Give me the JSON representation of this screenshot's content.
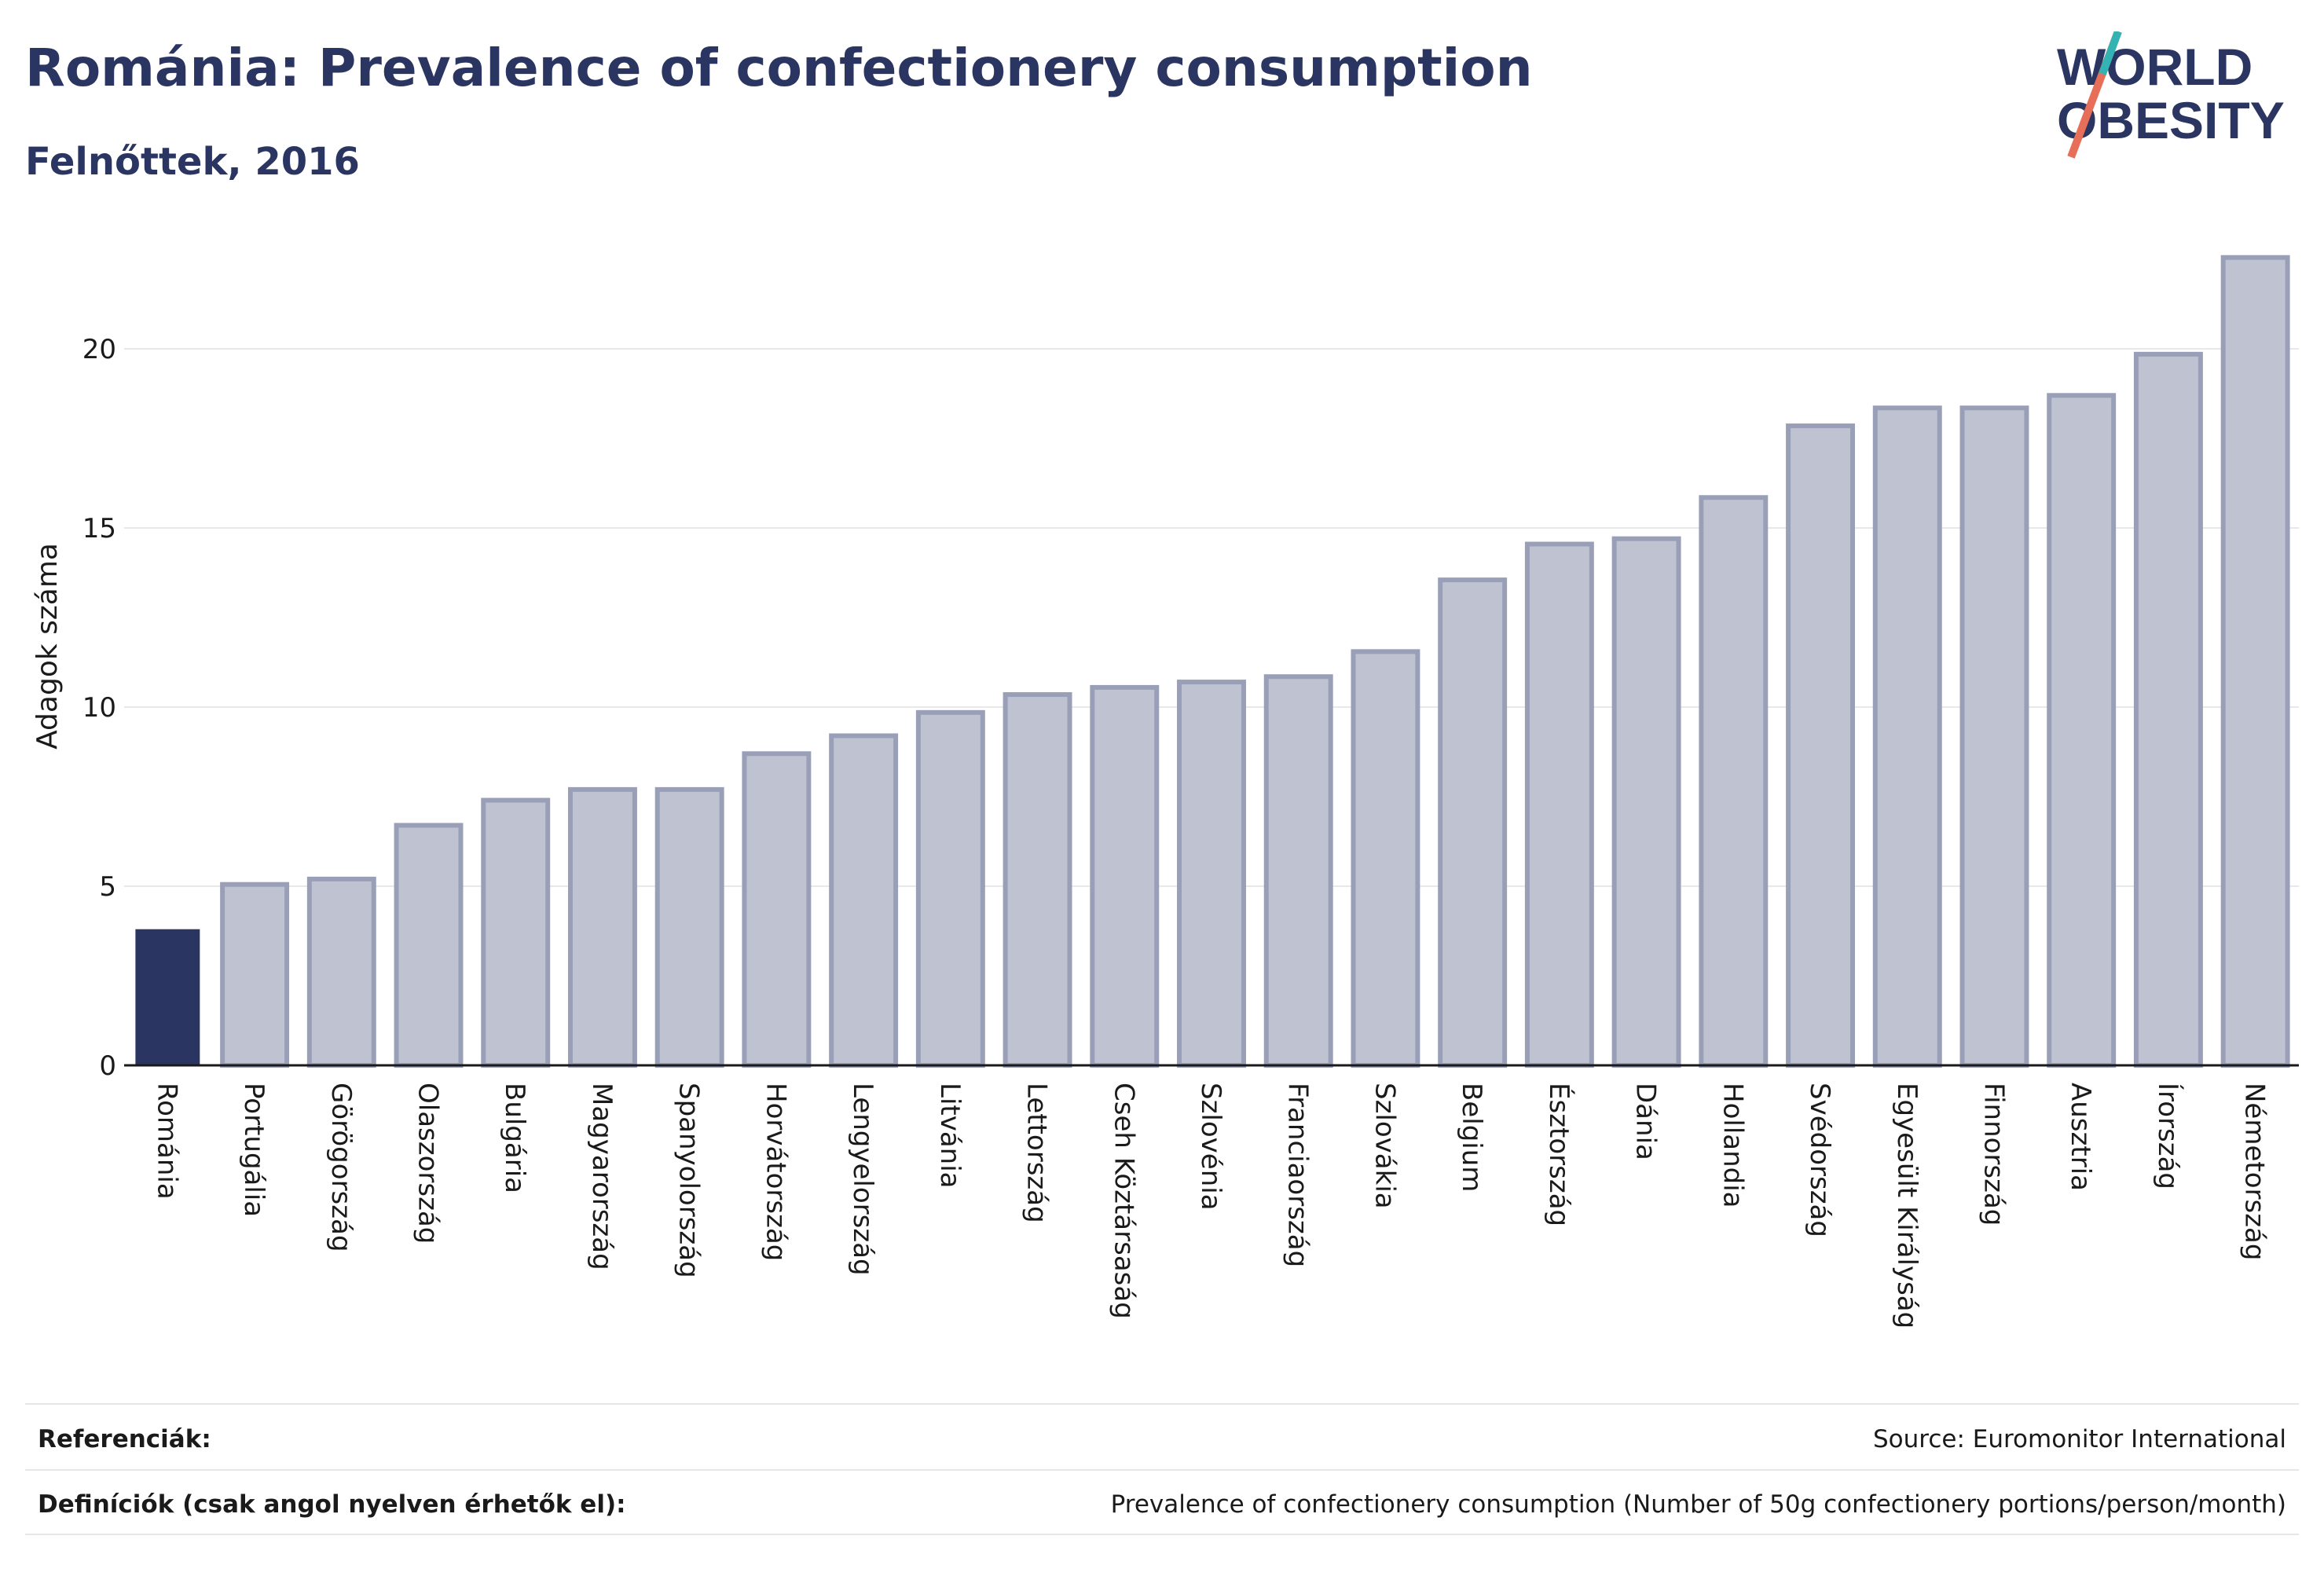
{
  "header": {
    "title": "Románia: Prevalence of confectionery consumption",
    "subtitle": "Felnőttek, 2016"
  },
  "logo": {
    "line1": "WORLD",
    "line2": "OBESITY"
  },
  "colors": {
    "highlight": "#2a3561",
    "bar": "#bfc2d0",
    "bar_stroke": "#9a9fb8",
    "grid": "#e8e8e8",
    "title": "#2a3561"
  },
  "chart_data": {
    "type": "bar",
    "ylabel": "Adagok száma",
    "xlabel": "",
    "ylim": [
      0,
      23
    ],
    "yticks": [
      0,
      5,
      10,
      15,
      20
    ],
    "grid": "horizontal",
    "highlight_category": "Románia",
    "categories": [
      "Románia",
      "Portugália",
      "Görögország",
      "Olaszország",
      "Bulgária",
      "Magyarország",
      "Spanyolország",
      "Horvátország",
      "Lengyelország",
      "Litvánia",
      "Lettország",
      "Cseh Köztársaság",
      "Szlovénia",
      "Franciaország",
      "Szlovákia",
      "Belgium",
      "Észtország",
      "Dánia",
      "Hollandia",
      "Svédország",
      "Egyesült Királyság",
      "Finnország",
      "Ausztria",
      "Írország",
      "Németország"
    ],
    "values": [
      3.8,
      5.05,
      5.2,
      6.7,
      7.4,
      7.7,
      7.7,
      8.7,
      9.2,
      9.85,
      10.35,
      10.55,
      10.7,
      10.85,
      11.55,
      13.55,
      14.55,
      14.7,
      15.85,
      17.85,
      18.35,
      18.35,
      18.7,
      19.85,
      22.55
    ]
  },
  "footer": {
    "references_label": "Referenciák:",
    "references_value": "Source: Euromonitor International",
    "definitions_label": "Definíciók (csak angol nyelven érhetők el):",
    "definitions_value": "Prevalence of confectionery consumption (Number of 50g confectionery portions/person/month)"
  }
}
